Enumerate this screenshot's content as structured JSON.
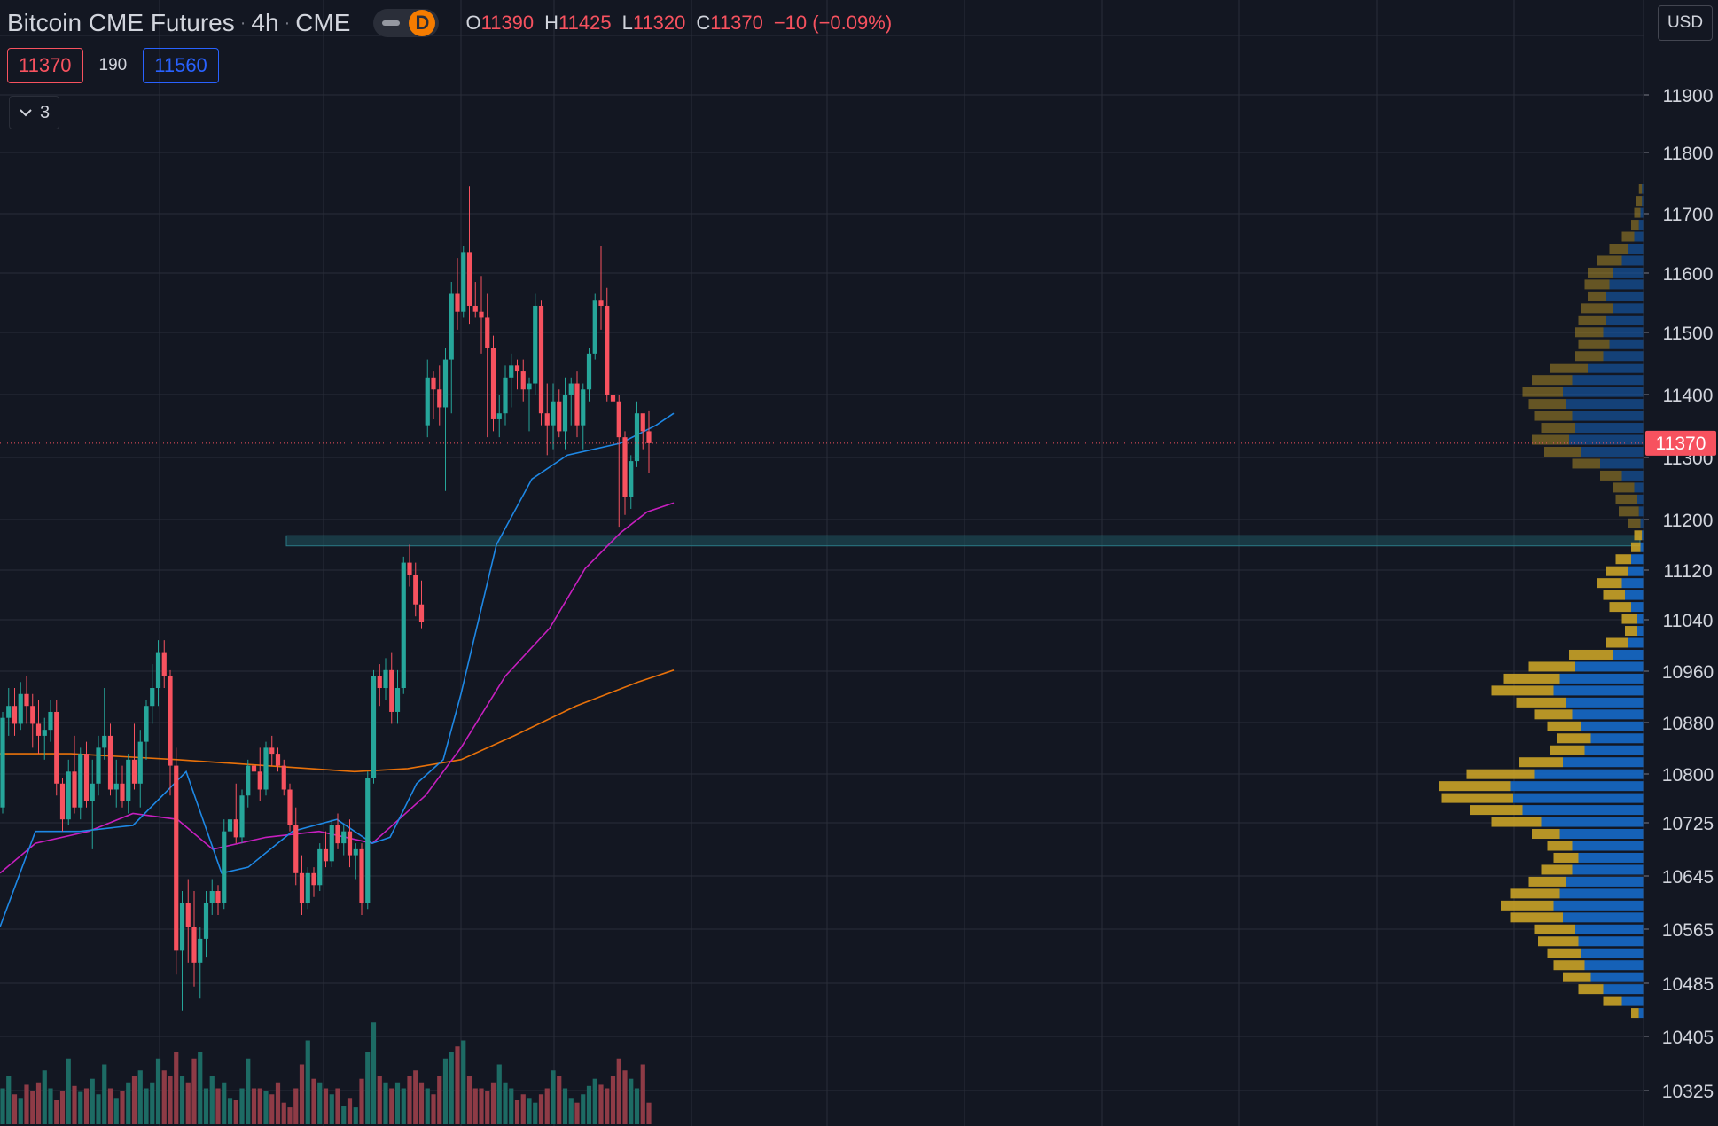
{
  "header": {
    "symbol": "Bitcoin CME Futures",
    "interval": "4h",
    "exchange": "CME",
    "mode_badge": "D",
    "ohlc": [
      {
        "label": "O",
        "value": "11390"
      },
      {
        "label": "H",
        "value": "11425"
      },
      {
        "label": "L",
        "value": "11320"
      },
      {
        "label": "C",
        "value": "11370"
      }
    ],
    "change": "−10 (−0.09%)"
  },
  "quote": {
    "bid": "11370",
    "spread": "190",
    "ask": "11560"
  },
  "indicators_toggle": {
    "count": "3"
  },
  "currency": "USD",
  "colors": {
    "background": "#131722",
    "grid": "#2a2e39",
    "up": "#26a69a",
    "down": "#f7525f",
    "vol_up": "#1d6b64",
    "vol_down": "#8e3b46",
    "ma_fast": "#1e88e5",
    "ma_mid": "#c71fbf",
    "ma_slow": "#e8710a",
    "vp_buy": "#1565c0",
    "vp_sell": "#c9a227"
  },
  "chart_data": {
    "type": "candlestick",
    "title": "Bitcoin CME Futures · 4h · CME",
    "ylim": [
      10280,
      12010
    ],
    "y_tick_labels": [
      "11900",
      "11800",
      "11700",
      "11600",
      "11500",
      "11400",
      "11300",
      "11200",
      "11120",
      "11040",
      "10960",
      "10880",
      "10800",
      "10725",
      "10645",
      "10565",
      "10485",
      "10405",
      "10325"
    ],
    "last_price": 11370,
    "last_price_label": "11370",
    "support_zone": {
      "low": 11198,
      "high": 11215
    },
    "candles": [
      [
        10760,
        10920,
        10750,
        10910
      ],
      [
        10910,
        10960,
        10880,
        10930
      ],
      [
        10930,
        10960,
        10880,
        10900
      ],
      [
        10900,
        10970,
        10890,
        10950
      ],
      [
        10950,
        10980,
        10900,
        10930
      ],
      [
        10930,
        10950,
        10860,
        10900
      ],
      [
        10900,
        10940,
        10850,
        10880
      ],
      [
        10880,
        10910,
        10840,
        10890
      ],
      [
        10890,
        10940,
        10870,
        10920
      ],
      [
        10920,
        10940,
        10780,
        10800
      ],
      [
        10800,
        10810,
        10720,
        10740
      ],
      [
        10740,
        10840,
        10730,
        10820
      ],
      [
        10820,
        10880,
        10750,
        10760
      ],
      [
        10760,
        10860,
        10740,
        10850
      ],
      [
        10850,
        10870,
        10760,
        10770
      ],
      [
        10770,
        10840,
        10690,
        10800
      ],
      [
        10800,
        10880,
        10780,
        10860
      ],
      [
        10860,
        10960,
        10840,
        10880
      ],
      [
        10880,
        10900,
        10780,
        10790
      ],
      [
        10790,
        10840,
        10760,
        10800
      ],
      [
        10800,
        10830,
        10760,
        10770
      ],
      [
        10770,
        10850,
        10750,
        10840
      ],
      [
        10840,
        10900,
        10790,
        10800
      ],
      [
        10800,
        10890,
        10760,
        10870
      ],
      [
        10870,
        10940,
        10840,
        10930
      ],
      [
        10930,
        11000,
        10900,
        10960
      ],
      [
        10960,
        11040,
        10930,
        11020
      ],
      [
        11020,
        11040,
        10960,
        10980
      ],
      [
        10980,
        10990,
        10780,
        10830
      ],
      [
        10830,
        10860,
        10480,
        10520
      ],
      [
        10520,
        10620,
        10420,
        10600
      ],
      [
        10600,
        10640,
        10500,
        10560
      ],
      [
        10560,
        10620,
        10460,
        10500
      ],
      [
        10500,
        10560,
        10440,
        10540
      ],
      [
        10540,
        10620,
        10510,
        10600
      ],
      [
        10600,
        10640,
        10580,
        10620
      ],
      [
        10620,
        10630,
        10580,
        10600
      ],
      [
        10600,
        10740,
        10590,
        10720
      ],
      [
        10720,
        10760,
        10690,
        10740
      ],
      [
        10740,
        10800,
        10700,
        10710
      ],
      [
        10710,
        10790,
        10700,
        10780
      ],
      [
        10780,
        10840,
        10760,
        10830
      ],
      [
        10830,
        10880,
        10800,
        10820
      ],
      [
        10820,
        10860,
        10770,
        10790
      ],
      [
        10790,
        10870,
        10780,
        10860
      ],
      [
        10860,
        10880,
        10830,
        10850
      ],
      [
        10850,
        10860,
        10820,
        10830
      ],
      [
        10830,
        10840,
        10780,
        10790
      ],
      [
        10790,
        10800,
        10720,
        10730
      ],
      [
        10730,
        10760,
        10630,
        10650
      ],
      [
        10650,
        10680,
        10580,
        10600
      ],
      [
        10600,
        10660,
        10590,
        10650
      ],
      [
        10650,
        10660,
        10610,
        10630
      ],
      [
        10630,
        10700,
        10620,
        10690
      ],
      [
        10690,
        10720,
        10660,
        10670
      ],
      [
        10670,
        10740,
        10660,
        10730
      ],
      [
        10730,
        10750,
        10690,
        10700
      ],
      [
        10700,
        10730,
        10680,
        10720
      ],
      [
        10720,
        10740,
        10660,
        10680
      ],
      [
        10680,
        10700,
        10640,
        10690
      ],
      [
        10690,
        10700,
        10580,
        10600
      ],
      [
        10600,
        10820,
        10590,
        10810
      ],
      [
        10810,
        10990,
        10800,
        10980
      ],
      [
        10980,
        11000,
        10930,
        10960
      ],
      [
        10960,
        11010,
        10940,
        10990
      ],
      [
        10990,
        11020,
        10900,
        10920
      ],
      [
        10920,
        10990,
        10900,
        10960
      ],
      [
        10960,
        11180,
        10950,
        11170
      ],
      [
        11170,
        11200,
        11130,
        11150
      ],
      [
        11150,
        11170,
        11080,
        11100
      ],
      [
        11100,
        11140,
        11060,
        11070
      ],
      [
        11400,
        11510,
        11380,
        11480
      ],
      [
        11480,
        11490,
        11410,
        11460
      ],
      [
        11460,
        11500,
        11400,
        11430
      ],
      [
        11430,
        11530,
        11290,
        11510
      ],
      [
        11510,
        11640,
        11420,
        11620
      ],
      [
        11620,
        11680,
        11560,
        11590
      ],
      [
        11590,
        11700,
        11580,
        11690
      ],
      [
        11690,
        11800,
        11570,
        11600
      ],
      [
        11600,
        11640,
        11580,
        11590
      ],
      [
        11590,
        11650,
        11520,
        11580
      ],
      [
        11580,
        11620,
        11380,
        11530
      ],
      [
        11530,
        11550,
        11390,
        11410
      ],
      [
        11410,
        11450,
        11380,
        11420
      ],
      [
        11420,
        11500,
        11400,
        11480
      ],
      [
        11480,
        11520,
        11430,
        11500
      ],
      [
        11500,
        11510,
        11460,
        11490
      ],
      [
        11490,
        11510,
        11440,
        11460
      ],
      [
        11460,
        11480,
        11390,
        11470
      ],
      [
        11470,
        11620,
        11450,
        11600
      ],
      [
        11600,
        11610,
        11400,
        11420
      ],
      [
        11420,
        11470,
        11350,
        11400
      ],
      [
        11400,
        11470,
        11360,
        11440
      ],
      [
        11440,
        11460,
        11380,
        11390
      ],
      [
        11390,
        11480,
        11360,
        11450
      ],
      [
        11450,
        11480,
        11400,
        11470
      ],
      [
        11470,
        11490,
        11380,
        11400
      ],
      [
        11400,
        11470,
        11360,
        11460
      ],
      [
        11460,
        11530,
        11440,
        11520
      ],
      [
        11520,
        11620,
        11510,
        11610
      ],
      [
        11610,
        11700,
        11560,
        11600
      ],
      [
        11600,
        11630,
        11440,
        11450
      ],
      [
        11450,
        11610,
        11420,
        11440
      ],
      [
        11440,
        11450,
        11230,
        11380
      ],
      [
        11380,
        11390,
        11250,
        11280
      ],
      [
        11280,
        11350,
        11260,
        11340
      ],
      [
        11340,
        11440,
        11330,
        11420
      ],
      [
        11420,
        11410,
        11360,
        11390
      ],
      [
        11390,
        11425,
        11320,
        11370
      ]
    ],
    "volume": [
      30,
      40,
      25,
      22,
      33,
      28,
      35,
      45,
      30,
      20,
      28,
      55,
      32,
      27,
      30,
      38,
      25,
      50,
      30,
      22,
      28,
      35,
      40,
      45,
      30,
      35,
      55,
      45,
      40,
      60,
      40,
      35,
      55,
      60,
      30,
      40,
      30,
      35,
      22,
      20,
      30,
      55,
      30,
      30,
      28,
      25,
      35,
      18,
      14,
      30,
      50,
      70,
      38,
      35,
      30,
      25,
      30,
      15,
      22,
      14,
      38,
      60,
      85,
      40,
      35,
      30,
      35,
      30,
      40,
      45,
      35,
      30,
      25,
      40,
      55,
      60,
      65,
      70,
      40,
      30,
      30,
      28,
      35,
      50,
      35,
      30,
      20,
      25,
      22,
      18,
      25,
      30,
      45,
      40,
      30,
      22,
      18,
      25,
      32,
      38,
      33,
      30,
      40,
      55,
      45,
      38,
      30,
      50,
      18
    ],
    "ma_fast": [
      [
        0,
        10560
      ],
      [
        40,
        10720
      ],
      [
        90,
        10720
      ],
      [
        150,
        10730
      ],
      [
        210,
        10820
      ],
      [
        250,
        10650
      ],
      [
        280,
        10660
      ],
      [
        330,
        10720
      ],
      [
        380,
        10740
      ],
      [
        420,
        10700
      ],
      [
        440,
        10710
      ],
      [
        470,
        10800
      ],
      [
        500,
        10840
      ],
      [
        520,
        10950
      ],
      [
        560,
        11200
      ],
      [
        600,
        11310
      ],
      [
        640,
        11350
      ],
      [
        700,
        11370
      ],
      [
        740,
        11400
      ],
      [
        760,
        11420
      ]
    ],
    "ma_mid": [
      [
        0,
        10650
      ],
      [
        40,
        10700
      ],
      [
        100,
        10720
      ],
      [
        150,
        10750
      ],
      [
        200,
        10740
      ],
      [
        240,
        10690
      ],
      [
        300,
        10710
      ],
      [
        360,
        10720
      ],
      [
        420,
        10700
      ],
      [
        450,
        10740
      ],
      [
        480,
        10780
      ],
      [
        520,
        10860
      ],
      [
        570,
        10980
      ],
      [
        620,
        11060
      ],
      [
        660,
        11160
      ],
      [
        700,
        11220
      ],
      [
        730,
        11255
      ],
      [
        760,
        11270
      ]
    ],
    "ma_slow": [
      [
        0,
        10850
      ],
      [
        80,
        10850
      ],
      [
        200,
        10840
      ],
      [
        300,
        10830
      ],
      [
        400,
        10820
      ],
      [
        460,
        10825
      ],
      [
        520,
        10840
      ],
      [
        580,
        10880
      ],
      [
        650,
        10930
      ],
      [
        720,
        10970
      ],
      [
        760,
        10990
      ]
    ],
    "volume_profile": [
      [
        11795,
        3,
        1
      ],
      [
        11775,
        5,
        1
      ],
      [
        11755,
        6,
        2
      ],
      [
        11735,
        8,
        3
      ],
      [
        11715,
        14,
        6
      ],
      [
        11695,
        22,
        10
      ],
      [
        11675,
        30,
        14
      ],
      [
        11655,
        36,
        20
      ],
      [
        11635,
        38,
        22
      ],
      [
        11615,
        36,
        24
      ],
      [
        11595,
        40,
        20
      ],
      [
        11575,
        42,
        24
      ],
      [
        11555,
        44,
        26
      ],
      [
        11535,
        42,
        22
      ],
      [
        11515,
        44,
        26
      ],
      [
        11495,
        60,
        36
      ],
      [
        11475,
        72,
        46
      ],
      [
        11455,
        78,
        52
      ],
      [
        11435,
        74,
        50
      ],
      [
        11415,
        70,
        46
      ],
      [
        11395,
        66,
        44
      ],
      [
        11375,
        72,
        48
      ],
      [
        11355,
        64,
        40
      ],
      [
        11335,
        46,
        28
      ],
      [
        11315,
        28,
        14
      ],
      [
        11295,
        20,
        6
      ],
      [
        11275,
        18,
        4
      ],
      [
        11255,
        16,
        3
      ],
      [
        11235,
        10,
        2
      ],
      [
        11215,
        6,
        1
      ],
      [
        11195,
        8,
        2
      ],
      [
        11175,
        18,
        8
      ],
      [
        11155,
        24,
        10
      ],
      [
        11135,
        30,
        14
      ],
      [
        11115,
        26,
        12
      ],
      [
        11095,
        22,
        8
      ],
      [
        11075,
        14,
        4
      ],
      [
        11055,
        12,
        4
      ],
      [
        11035,
        24,
        10
      ],
      [
        11015,
        48,
        20
      ],
      [
        10995,
        74,
        44
      ],
      [
        10975,
        90,
        54
      ],
      [
        10955,
        98,
        58
      ],
      [
        10935,
        82,
        50
      ],
      [
        10915,
        70,
        46
      ],
      [
        10895,
        62,
        40
      ],
      [
        10875,
        56,
        34
      ],
      [
        10855,
        60,
        38
      ],
      [
        10835,
        80,
        52
      ],
      [
        10815,
        114,
        70
      ],
      [
        10795,
        132,
        86
      ],
      [
        10775,
        130,
        84
      ],
      [
        10755,
        112,
        78
      ],
      [
        10735,
        98,
        66
      ],
      [
        10715,
        72,
        54
      ],
      [
        10695,
        62,
        46
      ],
      [
        10675,
        58,
        42
      ],
      [
        10655,
        66,
        46
      ],
      [
        10635,
        74,
        50
      ],
      [
        10615,
        86,
        54
      ],
      [
        10595,
        92,
        58
      ],
      [
        10575,
        86,
        52
      ],
      [
        10555,
        70,
        44
      ],
      [
        10535,
        68,
        42
      ],
      [
        10515,
        62,
        40
      ],
      [
        10495,
        58,
        38
      ],
      [
        10475,
        52,
        34
      ],
      [
        10455,
        42,
        26
      ],
      [
        10435,
        26,
        14
      ],
      [
        10415,
        8,
        3
      ]
    ]
  }
}
